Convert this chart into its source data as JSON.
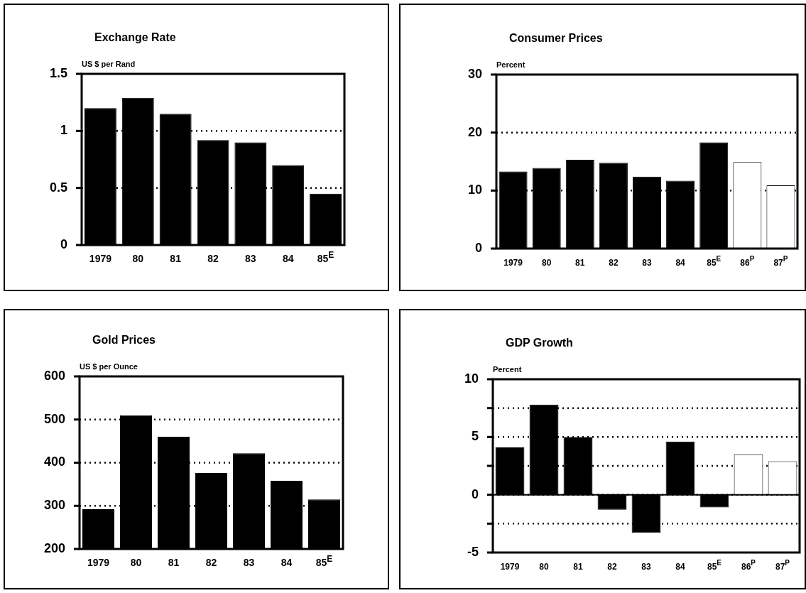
{
  "chart_data": [
    {
      "type": "bar",
      "title": "Exchange Rate",
      "ylabel": "US $ per Rand",
      "categories": [
        "1979",
        "80",
        "81",
        "82",
        "83",
        "84",
        "85$^{E}$"
      ],
      "values": [
        1.2,
        1.29,
        1.15,
        0.92,
        0.9,
        0.7,
        0.45
      ],
      "color": "#000000",
      "ylim": [
        0,
        1.5
      ],
      "yticks": [
        0,
        {
          "value": 0.5,
          "label": "0.5"
        },
        1,
        {
          "value": 1.5,
          "label": "1.5"
        }
      ],
      "grid": "y",
      "legend": false
    },
    {
      "type": "bar",
      "title": "Consumer Prices",
      "ylabel": "Percent",
      "categories": [
        "1979",
        "80",
        "81",
        "82",
        "83",
        "84",
        "85$^{E}$",
        "86$^{P}$",
        "87$^{P}$"
      ],
      "values": [
        13.3,
        13.9,
        15.3,
        14.8,
        12.4,
        11.7,
        18.3,
        14.9,
        10.9
      ],
      "colors": [
        "#000000",
        "#000000",
        "#000000",
        "#000000",
        "#000000",
        "#000000",
        "#000000",
        "#ffffff",
        "#ffffff"
      ],
      "ylim": [
        0,
        30
      ],
      "yticks": [
        0,
        10,
        20,
        30
      ],
      "grid": "y",
      "legend": false
    },
    {
      "type": "bar",
      "title": "Gold Prices",
      "ylabel": "US $ per Ounce",
      "categories": [
        "1979",
        "80",
        "81",
        "82",
        "83",
        "84",
        "85$^{E}$"
      ],
      "values": [
        292,
        510,
        460,
        376,
        422,
        358,
        315
      ],
      "color": "#000000",
      "ylim": [
        200,
        600
      ],
      "yticks": [
        200,
        300,
        400,
        500,
        600
      ],
      "grid": "y",
      "legend": false
    },
    {
      "type": "bar",
      "title": "GDP Growth",
      "ylabel": "Percent",
      "categories": [
        "1979",
        "80",
        "81",
        "82",
        "83",
        "84",
        "85$^{E}$",
        "86$^{P}$",
        "87$^{P}$"
      ],
      "values": [
        4.1,
        7.8,
        5.0,
        -1.3,
        -3.3,
        4.6,
        -1.1,
        3.5,
        2.9
      ],
      "colors": [
        "#000000",
        "#000000",
        "#000000",
        "#000000",
        "#000000",
        "#000000",
        "#000000",
        "#ffffff",
        "#ffffff"
      ],
      "ylim": [
        -5,
        10
      ],
      "yticks": [
        -5,
        {
          "value": -2.5,
          "label": null
        },
        0,
        {
          "value": 2.5,
          "label": null
        },
        5,
        {
          "value": 7.5,
          "label": null
        },
        10
      ],
      "grid": "y",
      "ref_lines": [
        {
          "axis": "y",
          "value": 0,
          "line_style": "solid"
        }
      ],
      "legend": false
    }
  ]
}
